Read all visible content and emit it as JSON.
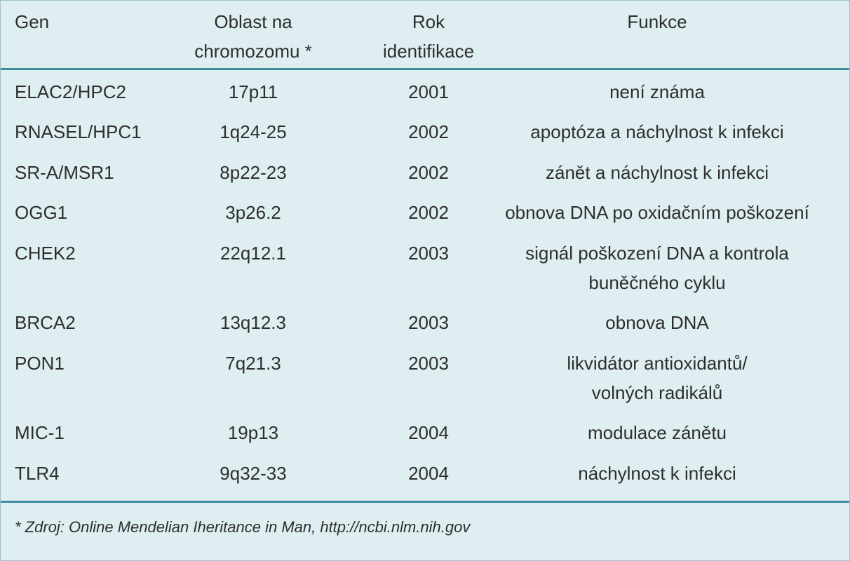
{
  "table": {
    "header": [
      [
        "Gen"
      ],
      [
        "Oblast na",
        "chromozomu *"
      ],
      [
        "Rok",
        "identifikace"
      ],
      [
        "Funkce"
      ]
    ],
    "rows": [
      [
        "ELAC2/HPC2",
        "17p11",
        "2001",
        [
          "není známa"
        ]
      ],
      [
        "RNASEL/HPC1",
        "1q24-25",
        "2002",
        [
          "apoptóza a náchylnost k infekci"
        ]
      ],
      [
        "SR-A/MSR1",
        "8p22-23",
        "2002",
        [
          "zánět a náchylnost k infekci"
        ]
      ],
      [
        "OGG1",
        "3p26.2",
        "2002",
        [
          "obnova DNA po oxidačním poškození"
        ]
      ],
      [
        "CHEK2",
        "22q12.1",
        "2003",
        [
          "signál poškození DNA a kontrola",
          "buněčného cyklu"
        ]
      ],
      [
        "BRCA2",
        "13q12.3",
        "2003",
        [
          "obnova DNA"
        ]
      ],
      [
        "PON1",
        "7q21.3",
        "2003",
        [
          "likvidátor antioxidantů/",
          "volných radikálů"
        ]
      ],
      [
        "MIC-1",
        "19p13",
        "2004",
        [
          "modulace zánětu"
        ]
      ],
      [
        "TLR4",
        "9q32-33",
        "2004",
        [
          "náchylnost k infekci"
        ]
      ]
    ]
  },
  "footnote": "* Zdroj: Online Mendelian Iheritance in Man, http://ncbi.nlm.nih.gov"
}
